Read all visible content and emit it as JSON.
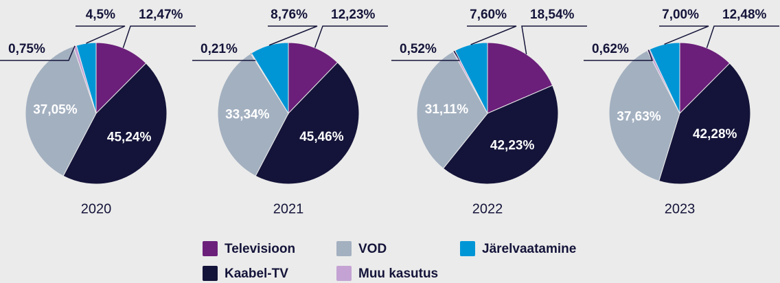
{
  "chart_data": [
    {
      "type": "pie",
      "title": "2020",
      "categories": [
        "Televisioon",
        "Kaabel-TV",
        "VOD",
        "Muu kasutus",
        "Järelvaatamine"
      ],
      "values": [
        12.47,
        45.24,
        37.05,
        0.75,
        4.5
      ],
      "value_labels": [
        "12,47%",
        "45,24%",
        "37,05%",
        "0,75%",
        "4,5%"
      ],
      "colors": [
        "#6b1f7a",
        "#14143a",
        "#a3b0c0",
        "#c4a3d4",
        "#0096d6"
      ]
    },
    {
      "type": "pie",
      "title": "2021",
      "categories": [
        "Televisioon",
        "Kaabel-TV",
        "VOD",
        "Muu kasutus",
        "Järelvaatamine"
      ],
      "values": [
        12.23,
        45.46,
        33.34,
        0.21,
        8.76
      ],
      "value_labels": [
        "12,23%",
        "45,46%",
        "33,34%",
        "0,21%",
        "8,76%"
      ],
      "colors": [
        "#6b1f7a",
        "#14143a",
        "#a3b0c0",
        "#c4a3d4",
        "#0096d6"
      ]
    },
    {
      "type": "pie",
      "title": "2022",
      "categories": [
        "Televisioon",
        "Kaabel-TV",
        "VOD",
        "Muu kasutus",
        "Järelvaatamine"
      ],
      "values": [
        18.54,
        42.23,
        31.11,
        0.52,
        7.6
      ],
      "value_labels": [
        "18,54%",
        "42,23%",
        "31,11%",
        "0,52%",
        "7,60%"
      ],
      "colors": [
        "#6b1f7a",
        "#14143a",
        "#a3b0c0",
        "#c4a3d4",
        "#0096d6"
      ]
    },
    {
      "type": "pie",
      "title": "2023",
      "categories": [
        "Televisioon",
        "Kaabel-TV",
        "VOD",
        "Muu kasutus",
        "Järelvaatamine"
      ],
      "values": [
        12.48,
        42.28,
        37.63,
        0.62,
        7.0
      ],
      "value_labels": [
        "12,48%",
        "42,28%",
        "37,63%",
        "0,62%",
        "7,00%"
      ],
      "colors": [
        "#6b1f7a",
        "#14143a",
        "#a3b0c0",
        "#c4a3d4",
        "#0096d6"
      ]
    }
  ]
}
